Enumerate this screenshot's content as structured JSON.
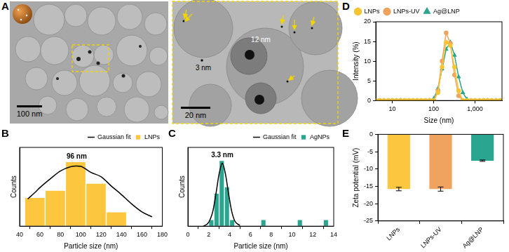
{
  "panel_labels": [
    "A",
    "B",
    "C",
    "D",
    "E"
  ],
  "micrographs": [
    {
      "scale_bar": "100 nm"
    },
    {
      "scale_bar": "20 nm",
      "annotations": [
        "3 nm",
        "12 nm"
      ]
    }
  ],
  "chart_data": [
    {
      "type": "histogram",
      "x_label": "Particle size (nm)",
      "y_label": "Counts",
      "xlim": [
        40,
        180
      ],
      "xticks": [
        40,
        60,
        80,
        100,
        120,
        140,
        160,
        180
      ],
      "ylim": [
        0,
        11
      ],
      "tick_labels": "x",
      "grid": false,
      "legend": "upper right",
      "annotations": [
        "96 nm"
      ],
      "series": [
        {
          "name": "LNPs",
          "type": "bar",
          "color": "#fcc73f",
          "bins": [
            45,
            65,
            85,
            105,
            125,
            145
          ],
          "values": [
            4,
            5,
            9,
            6,
            2
          ]
        },
        {
          "name": "Gaussian fit",
          "type": "line",
          "color": "#000000",
          "x": [
            48,
            55,
            60,
            70,
            80,
            90,
            96,
            100,
            110,
            120,
            130,
            140,
            150,
            160,
            170
          ],
          "values": [
            3.8,
            4.7,
            5.4,
            6.6,
            7.7,
            8.3,
            8.4,
            8.35,
            7.5,
            6.9,
            5.6,
            4.4,
            3.1,
            2.0,
            1.3
          ]
        }
      ]
    },
    {
      "type": "histogram",
      "x_label": "Particle size (nm)",
      "y_label": "Counts",
      "xlim": [
        0,
        14
      ],
      "xticks": [
        0,
        2,
        4,
        6,
        8,
        10,
        12,
        14
      ],
      "ylim": [
        0,
        12
      ],
      "tick_labels": "x",
      "grid": false,
      "legend": "upper right",
      "annotations": [
        "3.3 nm"
      ],
      "series": [
        {
          "name": "AgNPs",
          "type": "bar",
          "color": "#2aa58f",
          "bins": [
            2.0,
            2.5,
            3.0,
            3.5,
            4.0,
            4.5,
            5.0,
            5.5,
            6.0,
            6.5,
            7.0,
            7.5,
            8.0,
            8.5,
            9.0,
            9.5,
            10.0,
            10.5,
            11.0,
            11.5,
            12.0,
            12.5,
            13.0,
            13.5,
            14.0
          ],
          "values": [
            1,
            5,
            10,
            6,
            1,
            0,
            0,
            0,
            0,
            0,
            1,
            0,
            0,
            0,
            0,
            0,
            0,
            1,
            0,
            0,
            0,
            0,
            1,
            0
          ]
        },
        {
          "name": "Gaussian fit",
          "type": "line",
          "color": "#000000",
          "x": [
            1.5,
            2.0,
            2.4,
            2.7,
            3.0,
            3.3,
            3.6,
            3.9,
            4.2,
            4.5,
            5.0
          ],
          "values": [
            0.0,
            0.6,
            2.3,
            5.0,
            8.0,
            9.6,
            8.0,
            5.0,
            2.3,
            0.8,
            0.1
          ]
        }
      ]
    },
    {
      "type": "line",
      "x_label": "Size (nm)",
      "y_label": "Intensity (%)",
      "log": "x",
      "xlim": [
        4,
        4500
      ],
      "xticks": [
        10,
        100,
        {
          "value": 1000,
          "label": "1,000"
        }
      ],
      "ylim": [
        0,
        20
      ],
      "yticks": [
        0,
        5,
        10,
        15,
        20
      ],
      "grid": false,
      "legend": "upper left",
      "x": [
        4,
        5,
        6.3,
        8,
        10,
        12.6,
        15.9,
        20,
        25.2,
        31.7,
        40,
        50.4,
        63.5,
        80,
        100.8,
        127,
        160,
        201,
        254,
        320,
        403,
        508,
        640,
        806,
        1016,
        1280,
        1613,
        2032,
        2560,
        3226,
        4064
      ],
      "series": [
        {
          "name": "LNPs",
          "color": "#f7c531",
          "marker": "circle",
          "values": [
            0,
            0,
            0,
            0,
            0,
            0,
            0,
            0,
            0,
            0,
            0,
            0,
            0,
            0,
            0,
            2.0,
            8.5,
            14.8,
            14.0,
            8.5,
            2.5,
            0,
            0,
            0,
            0,
            0,
            0,
            0,
            0,
            0,
            0
          ]
        },
        {
          "name": "LNPs-UV",
          "color": "#f0a35e",
          "marker": "circle",
          "values": [
            0,
            0,
            0,
            0,
            0,
            0,
            0,
            0,
            0,
            0,
            0,
            0,
            0,
            0,
            0,
            2.5,
            10.0,
            17.2,
            14.5,
            6.5,
            1.2,
            0,
            0,
            0,
            0,
            0,
            0,
            0,
            0,
            0,
            0
          ]
        },
        {
          "name": "Ag@LNP",
          "color": "#2aa58f",
          "marker": "triangle",
          "values": [
            0,
            0,
            0,
            0,
            0,
            0,
            0,
            0,
            0,
            0,
            0,
            0,
            0,
            0,
            0.5,
            3.0,
            8.0,
            13.0,
            14.8,
            11.5,
            6.0,
            2.0,
            0.3,
            0,
            0,
            0,
            0,
            0,
            0,
            0,
            0
          ]
        }
      ]
    },
    {
      "type": "bar",
      "y_label": "Zeta potential (mV)",
      "categories": [
        "LNPs",
        "LNPs-UV",
        "Ag@LNP"
      ],
      "values": [
        -15.8,
        -15.8,
        -7.6
      ],
      "errors": [
        0.5,
        0.6,
        0.2
      ],
      "colors": [
        "#fcc73f",
        "#f0a35e",
        "#2aa58f"
      ],
      "ylim": [
        -25,
        0
      ],
      "yticks": [
        -25,
        -20,
        -15,
        -10,
        -5,
        0
      ],
      "grid": false
    }
  ]
}
